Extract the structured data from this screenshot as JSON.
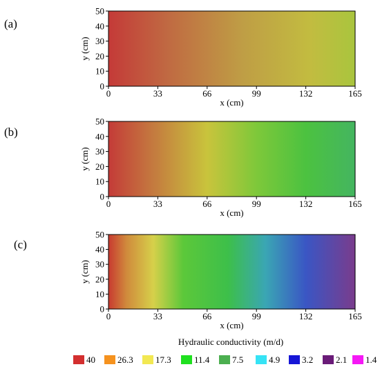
{
  "chart_data": [
    {
      "type": "heatmap",
      "panel_label": "(a)",
      "xlabel": "x (cm)",
      "ylabel": "y (cm)",
      "xlim": [
        0,
        165
      ],
      "ylim": [
        0,
        50
      ],
      "x_ticks": [
        "0",
        "33",
        "66",
        "99",
        "132",
        "165"
      ],
      "y_ticks": [
        "0",
        "10",
        "20",
        "30",
        "40",
        "50"
      ],
      "gradient": [
        {
          "x": 0,
          "color": "#c43a38"
        },
        {
          "x": 40,
          "color": "#c06a42"
        },
        {
          "x": 90,
          "color": "#bf9e45"
        },
        {
          "x": 135,
          "color": "#c2bc40"
        },
        {
          "x": 165,
          "color": "#a9c53e"
        }
      ]
    },
    {
      "type": "heatmap",
      "panel_label": "(b)",
      "xlabel": "x (cm)",
      "ylabel": "y (cm)",
      "xlim": [
        0,
        165
      ],
      "ylim": [
        0,
        50
      ],
      "x_ticks": [
        "0",
        "33",
        "66",
        "99",
        "132",
        "165"
      ],
      "y_ticks": [
        "0",
        "10",
        "20",
        "30",
        "40",
        "50"
      ],
      "gradient": [
        {
          "x": 0,
          "color": "#c43b38"
        },
        {
          "x": 30,
          "color": "#c47a3f"
        },
        {
          "x": 66,
          "color": "#c9c43c"
        },
        {
          "x": 99,
          "color": "#7ec83a"
        },
        {
          "x": 132,
          "color": "#4cc240"
        },
        {
          "x": 165,
          "color": "#44b560"
        }
      ]
    },
    {
      "type": "heatmap",
      "panel_label": "(c)",
      "xlabel": "x (cm)",
      "ylabel": "y (cm)",
      "xlim": [
        0,
        165
      ],
      "ylim": [
        0,
        50
      ],
      "x_ticks": [
        "0",
        "33",
        "66",
        "99",
        "132",
        "165"
      ],
      "y_ticks": [
        "0",
        "10",
        "20",
        "30",
        "40",
        "50"
      ],
      "gradient": [
        {
          "x": 0,
          "color": "#c83a30"
        },
        {
          "x": 12,
          "color": "#d08a3c"
        },
        {
          "x": 30,
          "color": "#d6d04a"
        },
        {
          "x": 50,
          "color": "#5cc83a"
        },
        {
          "x": 80,
          "color": "#3dbf4a"
        },
        {
          "x": 105,
          "color": "#3aa6b4"
        },
        {
          "x": 132,
          "color": "#3a56c4"
        },
        {
          "x": 165,
          "color": "#7a3c8c"
        }
      ]
    }
  ],
  "legend": {
    "title": "Hydraulic conductivity (m/d)",
    "items": [
      {
        "label": "40",
        "color": "#d32f2f"
      },
      {
        "label": "26.3",
        "color": "#f5921e"
      },
      {
        "label": "17.3",
        "color": "#f2e852"
      },
      {
        "label": "11.4",
        "color": "#1fe01f"
      },
      {
        "label": "7.5",
        "color": "#4caf50"
      },
      {
        "label": "4.9",
        "color": "#36e3f5"
      },
      {
        "label": "3.2",
        "color": "#1616d6"
      },
      {
        "label": "2.1",
        "color": "#6a1b78"
      },
      {
        "label": "1.4",
        "color": "#f518f5"
      }
    ]
  }
}
